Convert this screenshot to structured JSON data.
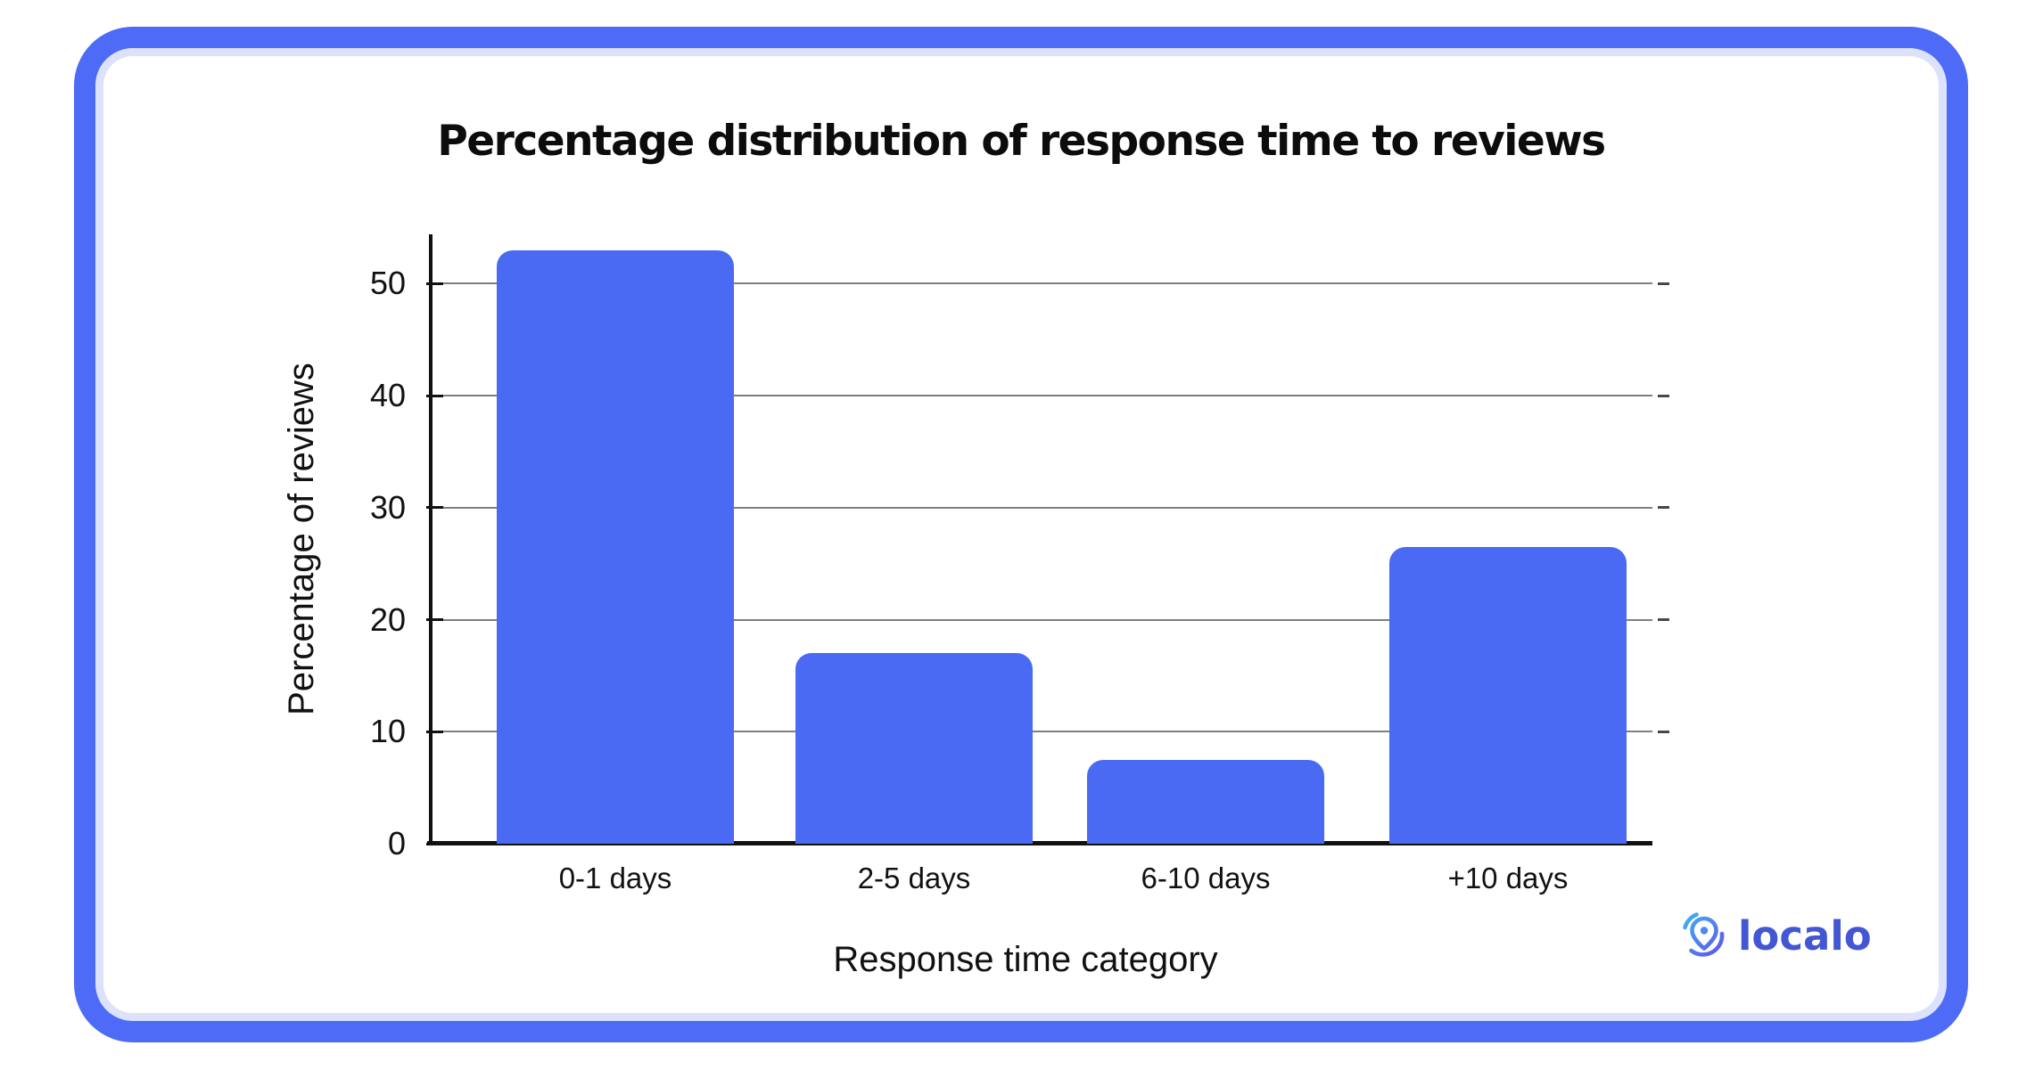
{
  "chart_data": {
    "type": "bar",
    "title": "Percentage distribution of response time to reviews",
    "categories": [
      "0-1 days",
      "2-5 days",
      "6-10 days",
      "+10 days"
    ],
    "values": [
      53,
      17,
      7.5,
      26.5
    ],
    "xlabel": "Response time category",
    "ylabel": "Percentage of reviews",
    "yticks": [
      0,
      10,
      20,
      30,
      40,
      50
    ],
    "ylim": [
      0,
      54.4
    ],
    "grid": true,
    "legend_position": "none",
    "bar_color": "#4A6AF3"
  },
  "branding": {
    "logo_text": "localo",
    "logo_text_color": "#4457D3",
    "logo_gradient_start": "#3EB3F4",
    "logo_gradient_end": "#6150E8"
  },
  "frame": {
    "border_color": "#4E6BF7",
    "inner_ring_color": "#DCE2FC",
    "background_color": "#FFFFFF"
  }
}
